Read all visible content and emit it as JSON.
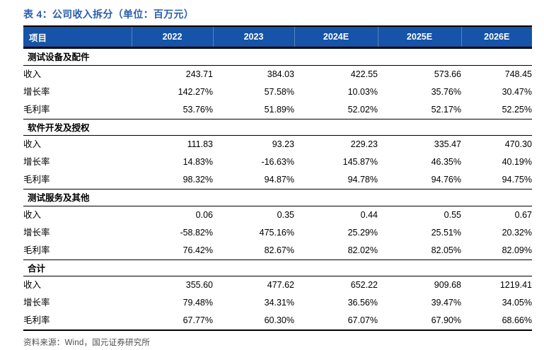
{
  "title": "表 4：公司收入拆分（单位：百万元）",
  "source_note": "资料来源：Wind，国元证券研究所",
  "colors": {
    "header_bg": "#1554A8",
    "title_blue": "#2A5EAC",
    "line_black": "#000000",
    "source_gray": "#4D4D4D"
  },
  "chart_data": {
    "type": "table",
    "title": "公司收入拆分",
    "unit": "百万元",
    "columns": [
      "项目",
      "2022",
      "2023",
      "2024E",
      "2025E",
      "2026E"
    ],
    "sections": [
      {
        "name": "测试设备及配件",
        "rows": [
          {
            "label": "收入",
            "values": [
              "243.71",
              "384.03",
              "422.55",
              "573.66",
              "748.45"
            ]
          },
          {
            "label": "增长率",
            "values": [
              "142.27%",
              "57.58%",
              "10.03%",
              "35.76%",
              "30.47%"
            ]
          },
          {
            "label": "毛利率",
            "values": [
              "53.76%",
              "51.89%",
              "52.02%",
              "52.17%",
              "52.25%"
            ]
          }
        ]
      },
      {
        "name": "软件开发及授权",
        "rows": [
          {
            "label": "收入",
            "values": [
              "111.83",
              "93.23",
              "229.23",
              "335.47",
              "470.30"
            ]
          },
          {
            "label": "增长率",
            "values": [
              "14.83%",
              "-16.63%",
              "145.87%",
              "46.35%",
              "40.19%"
            ]
          },
          {
            "label": "毛利率",
            "values": [
              "98.32%",
              "94.87%",
              "94.78%",
              "94.76%",
              "94.75%"
            ]
          }
        ]
      },
      {
        "name": "测试服务及其他",
        "rows": [
          {
            "label": "收入",
            "values": [
              "0.06",
              "0.35",
              "0.44",
              "0.55",
              "0.67"
            ]
          },
          {
            "label": "增长率",
            "values": [
              "-58.82%",
              "475.16%",
              "25.29%",
              "25.51%",
              "20.32%"
            ]
          },
          {
            "label": "毛利率",
            "values": [
              "76.42%",
              "82.67%",
              "82.02%",
              "82.05%",
              "82.09%"
            ]
          }
        ]
      },
      {
        "name": "合计",
        "rows": [
          {
            "label": "收入",
            "values": [
              "355.60",
              "477.62",
              "652.22",
              "909.68",
              "1219.41"
            ]
          },
          {
            "label": "增长率",
            "values": [
              "79.48%",
              "34.31%",
              "36.56%",
              "39.47%",
              "34.05%"
            ]
          },
          {
            "label": "毛利率",
            "values": [
              "67.77%",
              "60.30%",
              "67.07%",
              "67.90%",
              "68.66%"
            ]
          }
        ]
      }
    ],
    "source": "Wind，国元证券研究所"
  }
}
